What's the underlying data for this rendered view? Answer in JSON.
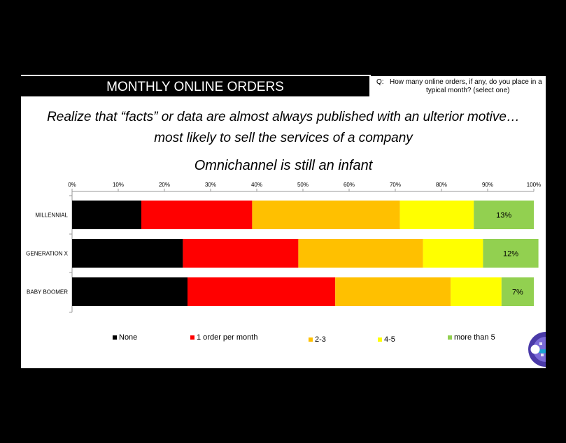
{
  "slide": {
    "title": "MONTHLY ONLINE ORDERS",
    "question_prefix": "Q:",
    "question_line1": "How many online orders, if any, do you place in a",
    "question_line2": "typical month? (select one)",
    "headline_line1": "Realize that “facts” or data are almost always published with an ulterior motive…",
    "headline_line2": "most likely to sell the services of a company",
    "headline_line3": "Omnichannel is still an infant"
  },
  "colors": {
    "none": "#000000",
    "one_per_month": "#ff0000",
    "two_three": "#ffc000",
    "four_five": "#ffff00",
    "more_than_5": "#92d050"
  },
  "legend": [
    "None",
    "1 order per month",
    "2-3",
    "4-5",
    "more than 5"
  ],
  "chart_data": {
    "type": "bar",
    "orientation": "horizontal",
    "stacked": true,
    "categories": [
      "MILLENNIAL",
      "GENERATION X",
      "BABY BOOMER"
    ],
    "series": [
      {
        "name": "None",
        "values": [
          15,
          24,
          25
        ]
      },
      {
        "name": "1 order per month",
        "values": [
          24,
          25,
          32
        ]
      },
      {
        "name": "2-3",
        "values": [
          32,
          27,
          25
        ]
      },
      {
        "name": "4-5",
        "values": [
          16,
          13,
          11
        ]
      },
      {
        "name": "more than 5",
        "values": [
          13,
          12,
          7
        ]
      }
    ],
    "data_labels": {
      "more than 5": [
        "13%",
        "12%",
        "7%"
      ]
    },
    "x_ticks": [
      "0%",
      "10%",
      "20%",
      "30%",
      "40%",
      "50%",
      "60%",
      "70%",
      "80%",
      "90%",
      "100%"
    ],
    "xlim": [
      0,
      100
    ],
    "grid": false,
    "legend_position": "bottom"
  }
}
